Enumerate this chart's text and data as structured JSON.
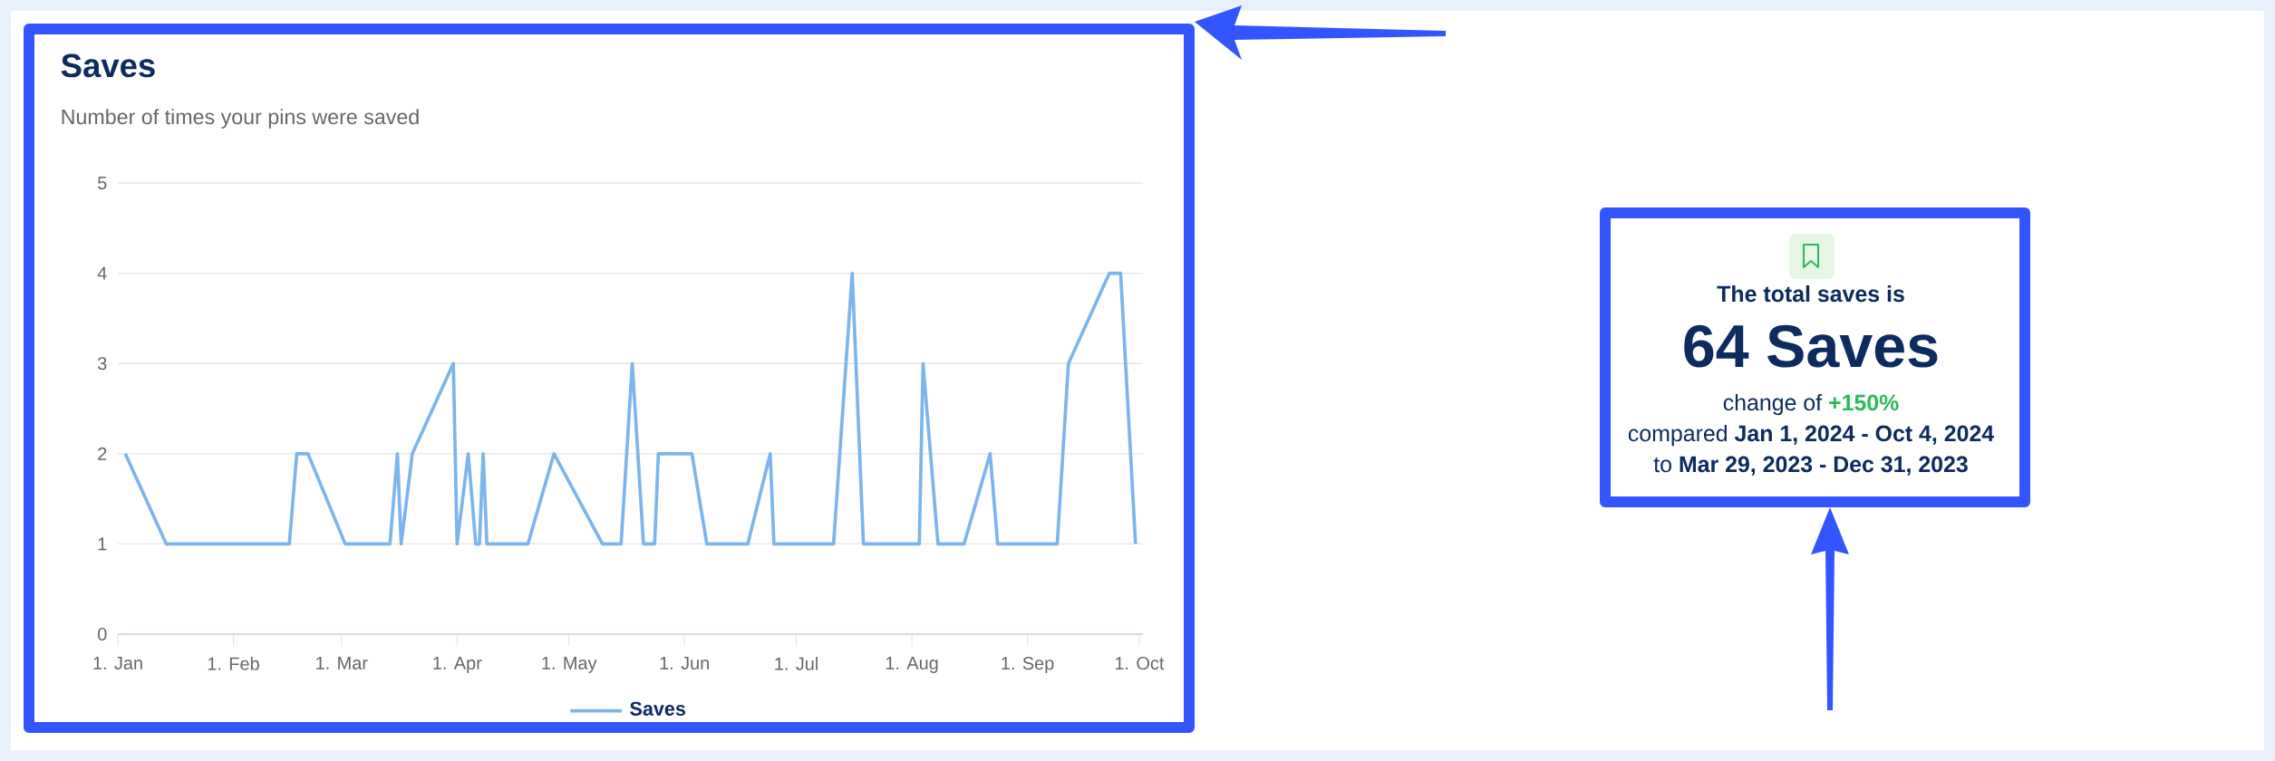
{
  "chart_data": [
    {
      "type": "line",
      "title": "Saves",
      "subtitle": "Number of times your pins were saved",
      "x": [
        "2024-01-03",
        "2024-01-14",
        "2024-02-16",
        "2024-02-18",
        "2024-02-21",
        "2024-03-02",
        "2024-03-14",
        "2024-03-16",
        "2024-03-17",
        "2024-03-20",
        "2024-03-31",
        "2024-04-01",
        "2024-04-04",
        "2024-04-06",
        "2024-04-07",
        "2024-04-08",
        "2024-04-09",
        "2024-04-20",
        "2024-04-27",
        "2024-05-10",
        "2024-05-15",
        "2024-05-18",
        "2024-05-21",
        "2024-05-24",
        "2024-05-25",
        "2024-06-03",
        "2024-06-07",
        "2024-06-18",
        "2024-06-24",
        "2024-06-25",
        "2024-07-11",
        "2024-07-16",
        "2024-07-19",
        "2024-08-03",
        "2024-08-04",
        "2024-08-08",
        "2024-08-15",
        "2024-08-22",
        "2024-08-24",
        "2024-09-09",
        "2024-09-12",
        "2024-09-23",
        "2024-09-26",
        "2024-09-30"
      ],
      "series": [
        {
          "name": "Saves",
          "color": "#7cb5ec",
          "values": [
            2,
            1,
            1,
            2,
            2,
            1,
            1,
            2,
            1,
            2,
            3,
            1,
            2,
            1,
            1,
            2,
            1,
            1,
            2,
            1,
            1,
            3,
            1,
            1,
            2,
            2,
            1,
            1,
            2,
            1,
            1,
            4,
            1,
            1,
            3,
            1,
            1,
            2,
            1,
            1,
            3,
            4,
            4,
            1
          ]
        }
      ],
      "xlim": [
        "2024-01-01",
        "2024-10-02"
      ],
      "xticks": [
        {
          "value": "2024-01-01",
          "label": "1. Jan"
        },
        {
          "value": "2024-02-01",
          "label": "1. Feb"
        },
        {
          "value": "2024-03-01",
          "label": "1. Mar"
        },
        {
          "value": "2024-04-01",
          "label": "1. Apr"
        },
        {
          "value": "2024-05-01",
          "label": "1. May"
        },
        {
          "value": "2024-06-01",
          "label": "1. Jun"
        },
        {
          "value": "2024-07-01",
          "label": "1. Jul"
        },
        {
          "value": "2024-08-01",
          "label": "1. Aug"
        },
        {
          "value": "2024-09-01",
          "label": "1. Sep"
        },
        {
          "value": "2024-10-01",
          "label": "1. Oct"
        }
      ],
      "ylim": [
        0,
        5
      ],
      "yticks": [
        0,
        1,
        2,
        3,
        4,
        5
      ],
      "grid": "y",
      "legend": "bottom",
      "line_style": "solid",
      "marker": "none"
    },
    {
      "type": "other",
      "title": "The total saves is",
      "annotations": [
        "64 Saves",
        "change of",
        "+150%",
        "compared **Jan 1, 2024 - Oct 4, 2024**",
        "to **Mar 29, 2023 - Dec 31, 2023**"
      ]
    }
  ]
}
